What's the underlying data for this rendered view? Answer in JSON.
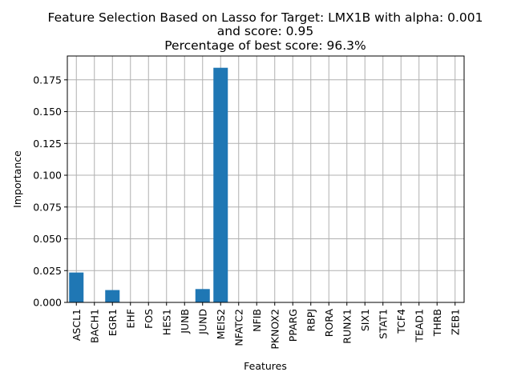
{
  "chart_data": {
    "type": "bar",
    "title_lines": [
      "Feature Selection Based on Lasso for Target: LMX1B with alpha: 0.001",
      "and score: 0.95",
      "Percentage of best score: 96.3%"
    ],
    "xlabel": "Features",
    "ylabel": "Importance",
    "categories": [
      "ASCL1",
      "BACH1",
      "EGR1",
      "EHF",
      "FOS",
      "HES1",
      "JUNB",
      "JUND",
      "MEIS2",
      "NFATC2",
      "NFIB",
      "PKNOX2",
      "PPARG",
      "RBPJ",
      "RORA",
      "RUNX1",
      "SIX1",
      "STAT1",
      "TCF4",
      "TEAD1",
      "THRB",
      "ZEB1"
    ],
    "values": [
      0.0235,
      0,
      0.0097,
      0,
      0,
      0,
      0,
      0.0105,
      0.1845,
      0,
      0,
      0,
      0,
      0,
      0,
      0,
      0,
      0,
      0,
      0,
      0,
      0
    ],
    "yticks": [
      "0.000",
      "0.025",
      "0.050",
      "0.075",
      "0.100",
      "0.125",
      "0.150",
      "0.175"
    ],
    "ylim": [
      0,
      0.19375
    ],
    "grid": true,
    "bar_color": "#1f77b4"
  }
}
